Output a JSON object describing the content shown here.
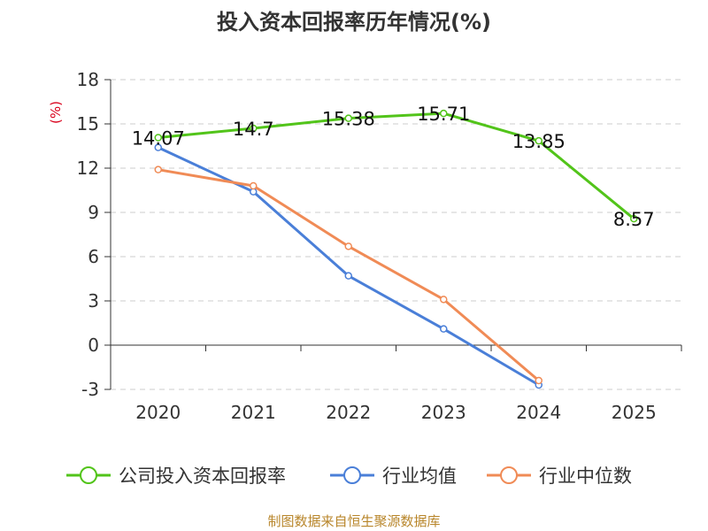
{
  "chart_data": {
    "type": "line",
    "title": "投入资本回报率历年情况(%)",
    "ylabel": "(%)",
    "categories": [
      "2020",
      "2021",
      "2022",
      "2023",
      "2024",
      "2025"
    ],
    "yticks": [
      18,
      15,
      12,
      9,
      6,
      3,
      0,
      -3
    ],
    "ylim": [
      -3,
      18
    ],
    "grid": true,
    "legend_position": "bottom",
    "series": [
      {
        "name": "公司投入资本回报率",
        "color": "#52c41a",
        "values": [
          14.07,
          14.7,
          15.38,
          15.71,
          13.85,
          8.57
        ],
        "labels": [
          "14.07",
          "14.7",
          "15.38",
          "15.71",
          "13.85",
          "8.57"
        ]
      },
      {
        "name": "行业均值",
        "color": "#4a7fd8",
        "values": [
          13.4,
          10.4,
          4.7,
          1.1,
          -2.7,
          null
        ]
      },
      {
        "name": "行业中位数",
        "color": "#f08b56",
        "values": [
          11.9,
          10.8,
          6.7,
          3.1,
          -2.4,
          null
        ]
      }
    ]
  },
  "source": "制图数据来自恒生聚源数据库"
}
